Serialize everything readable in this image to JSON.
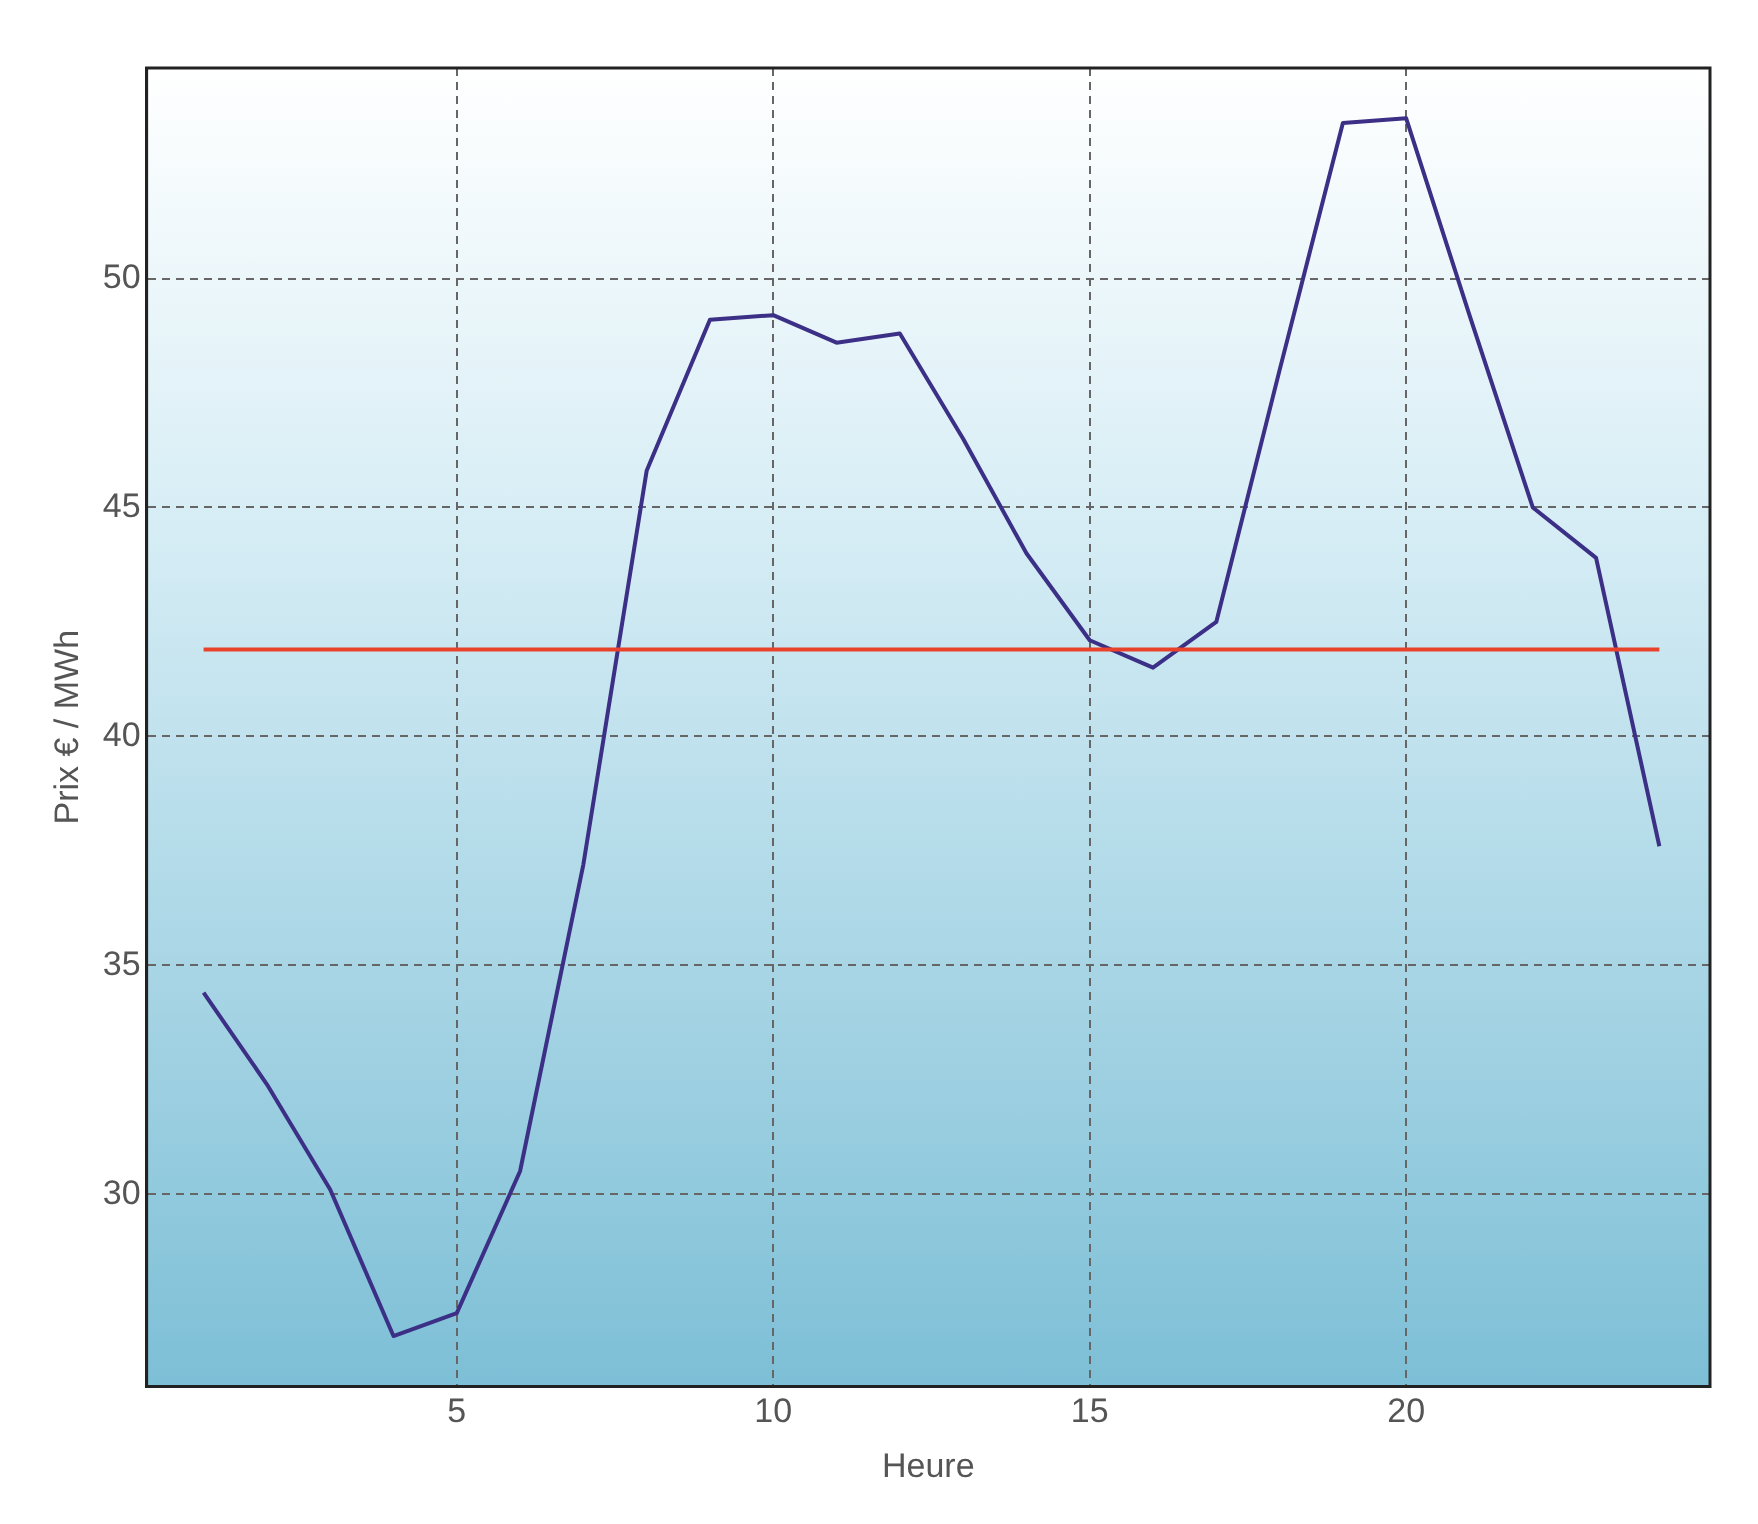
{
  "chart_data": {
    "type": "line",
    "xlabel": "Heure",
    "ylabel": "Prix € / MWh",
    "x": [
      1,
      2,
      3,
      4,
      5,
      6,
      7,
      8,
      9,
      10,
      11,
      12,
      13,
      14,
      15,
      16,
      17,
      18,
      19,
      20,
      21,
      22,
      23,
      24
    ],
    "series": [
      {
        "color": "#3b2f86",
        "values": [
          34.4,
          32.4,
          30.1,
          26.9,
          27.4,
          30.5,
          37.2,
          45.8,
          49.1,
          49.2,
          48.6,
          48.8,
          46.5,
          44.0,
          42.1,
          41.5,
          42.5,
          48.0,
          53.4,
          53.5,
          49.2,
          45.0,
          43.9,
          37.6
        ]
      }
    ],
    "ref_lines": [
      {
        "axis": "y",
        "value": 41.9,
        "color": "#e8432a"
      }
    ],
    "xlim": [
      0.1,
      24.8
    ],
    "xticks": [
      5,
      10,
      15,
      20
    ],
    "ylim": [
      25.8,
      54.6
    ],
    "yticks": [
      30,
      35,
      40,
      45,
      50
    ],
    "grid": true,
    "line_style": "solid",
    "marker": "none",
    "legend": false
  }
}
